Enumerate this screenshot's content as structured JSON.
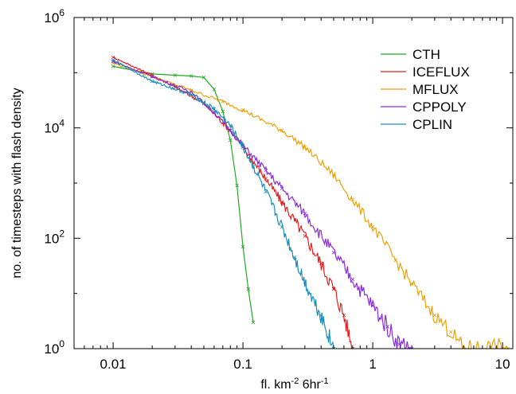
{
  "chart_data": {
    "type": "line",
    "title": "",
    "xlabel_main": "fl. km",
    "xlabel_sup1": "-2",
    "xlabel_mid": " 6hr",
    "xlabel_sup2": "-1",
    "ylabel": "no. of timesteps with flash density",
    "xscale": "log",
    "yscale": "log",
    "xlim": [
      0.005,
      12
    ],
    "ylim": [
      1,
      1000000
    ],
    "x_ticks": [
      {
        "value": 0.01,
        "label": "0.01"
      },
      {
        "value": 0.1,
        "label": "0.1"
      },
      {
        "value": 1,
        "label": "1"
      },
      {
        "value": 10,
        "label": "10"
      }
    ],
    "y_ticks": [
      {
        "value": 1,
        "base": "10",
        "exp": "0"
      },
      {
        "value": 100,
        "base": "10",
        "exp": "2"
      },
      {
        "value": 10000,
        "base": "10",
        "exp": "4"
      },
      {
        "value": 1000000,
        "base": "10",
        "exp": "6"
      }
    ],
    "legend_position": "top-right",
    "grid": false,
    "series": [
      {
        "name": "CTH",
        "color": "#22aa22",
        "noise": 0,
        "points": [
          [
            0.01,
            130000
          ],
          [
            0.02,
            95000
          ],
          [
            0.03,
            90000
          ],
          [
            0.04,
            87000
          ],
          [
            0.05,
            82000
          ],
          [
            0.06,
            50000
          ],
          [
            0.07,
            20000
          ],
          [
            0.08,
            6000
          ],
          [
            0.09,
            900
          ],
          [
            0.1,
            70
          ],
          [
            0.11,
            12
          ],
          [
            0.12,
            3
          ]
        ]
      },
      {
        "name": "ICEFLUX",
        "color": "#e02020",
        "noise": 0.1,
        "points": [
          [
            0.01,
            190000
          ],
          [
            0.02,
            90000
          ],
          [
            0.03,
            55000
          ],
          [
            0.05,
            28000
          ],
          [
            0.08,
            9000
          ],
          [
            0.1,
            4500
          ],
          [
            0.15,
            1200
          ],
          [
            0.2,
            450
          ],
          [
            0.3,
            110
          ],
          [
            0.4,
            35
          ],
          [
            0.5,
            12
          ],
          [
            0.6,
            4
          ],
          [
            0.7,
            1
          ]
        ]
      },
      {
        "name": "MFLUX",
        "color": "#f0a000",
        "noise": 0.12,
        "points": [
          [
            0.01,
            150000
          ],
          [
            0.02,
            85000
          ],
          [
            0.04,
            48000
          ],
          [
            0.07,
            30000
          ],
          [
            0.1,
            21000
          ],
          [
            0.2,
            9000
          ],
          [
            0.3,
            4500
          ],
          [
            0.5,
            1400
          ],
          [
            0.7,
            500
          ],
          [
            1,
            160
          ],
          [
            1.5,
            40
          ],
          [
            2,
            15
          ],
          [
            3,
            4
          ],
          [
            4,
            2
          ],
          [
            5,
            1
          ],
          [
            10,
            1
          ],
          [
            11,
            1
          ]
        ]
      },
      {
        "name": "CPPOLY",
        "color": "#8a2be2",
        "noise": 0.12,
        "points": [
          [
            0.01,
            160000
          ],
          [
            0.02,
            85000
          ],
          [
            0.04,
            45000
          ],
          [
            0.06,
            19000
          ],
          [
            0.08,
            9000
          ],
          [
            0.1,
            4800
          ],
          [
            0.15,
            1700
          ],
          [
            0.2,
            800
          ],
          [
            0.3,
            280
          ],
          [
            0.5,
            55
          ],
          [
            0.7,
            18
          ],
          [
            1,
            6
          ],
          [
            1.3,
            2.5
          ],
          [
            1.6,
            1.2
          ],
          [
            2,
            1
          ]
        ]
      },
      {
        "name": "CPLIN",
        "color": "#1a8fbf",
        "noise": 0.1,
        "points": [
          [
            0.01,
            170000
          ],
          [
            0.02,
            70000
          ],
          [
            0.04,
            40000
          ],
          [
            0.06,
            22000
          ],
          [
            0.08,
            11000
          ],
          [
            0.1,
            4500
          ],
          [
            0.12,
            2000
          ],
          [
            0.15,
            700
          ],
          [
            0.2,
            160
          ],
          [
            0.25,
            45
          ],
          [
            0.3,
            16
          ],
          [
            0.4,
            4
          ],
          [
            0.5,
            1
          ]
        ]
      }
    ]
  }
}
